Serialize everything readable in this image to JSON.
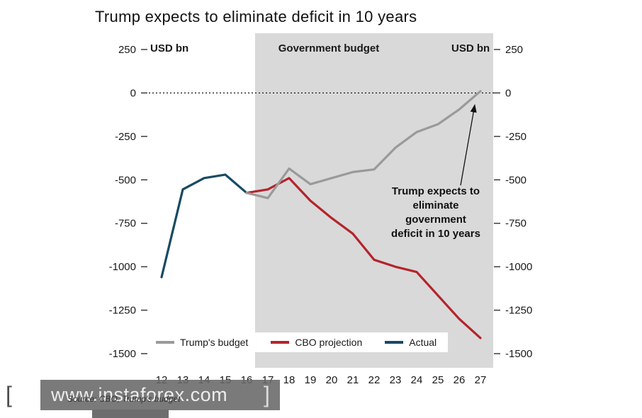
{
  "title": "Trump expects to eliminate deficit in 10 years",
  "axis": {
    "left_unit": "USD bn",
    "right_unit": "USD bn"
  },
  "region_label": "Government budget",
  "annotation": {
    "text": "Trump expects to\neliminate\ngovernment\ndeficit in 10 years"
  },
  "legend": {
    "items": [
      {
        "label": "Trump's budget",
        "color": "#9a9a9a"
      },
      {
        "label": "CBO projection",
        "color": "#b5232b"
      },
      {
        "label": "Actual",
        "color": "#174a63"
      }
    ]
  },
  "source": "Source: CBO, Trump's budget",
  "watermark": {
    "left_bracket": "[",
    "text": "www.instaforex.com",
    "right_bracket": "]"
  },
  "chart_data": {
    "type": "line",
    "title": "Trump expects to eliminate deficit in 10 years",
    "xlabel": "",
    "ylabel": "USD bn",
    "ylim": [
      -1500,
      250
    ],
    "y_ticks": [
      250,
      0,
      -250,
      -500,
      -750,
      -1000,
      -1250,
      -1500
    ],
    "x_labels": [
      "12",
      "13",
      "14",
      "15",
      "16",
      "17",
      "18",
      "19",
      "20",
      "21",
      "22",
      "23",
      "24",
      "25",
      "26",
      "27"
    ],
    "zero_line": "dashed",
    "grid": "off",
    "legend_position": "bottom-inside",
    "highlight_region": {
      "label": "Government budget",
      "x_start": 16.4,
      "x_end": 27.6,
      "color": "#d9d9d9"
    },
    "series": [
      {
        "name": "Actual",
        "color": "#174a63",
        "x": [
          12,
          13,
          14,
          15,
          16
        ],
        "values": [
          -1060,
          -555,
          -490,
          -470,
          -575
        ]
      },
      {
        "name": "CBO projection",
        "color": "#b5232b",
        "x": [
          16,
          17,
          18,
          19,
          20,
          21,
          22,
          23,
          24,
          25,
          26,
          27
        ],
        "values": [
          -575,
          -555,
          -490,
          -620,
          -720,
          -810,
          -960,
          -1000,
          -1030,
          -1165,
          -1300,
          -1410
        ]
      },
      {
        "name": "Trump's budget",
        "color": "#9a9a9a",
        "x": [
          16,
          17,
          18,
          19,
          20,
          21,
          22,
          23,
          24,
          25,
          26,
          27
        ],
        "values": [
          -575,
          -605,
          -435,
          -525,
          -490,
          -455,
          -440,
          -315,
          -225,
          -180,
          -95,
          10
        ]
      }
    ],
    "annotation": {
      "text": "Trump expects to eliminate government deficit in 10 years",
      "arrow_points_to": {
        "x": 27,
        "value": 0
      }
    }
  }
}
